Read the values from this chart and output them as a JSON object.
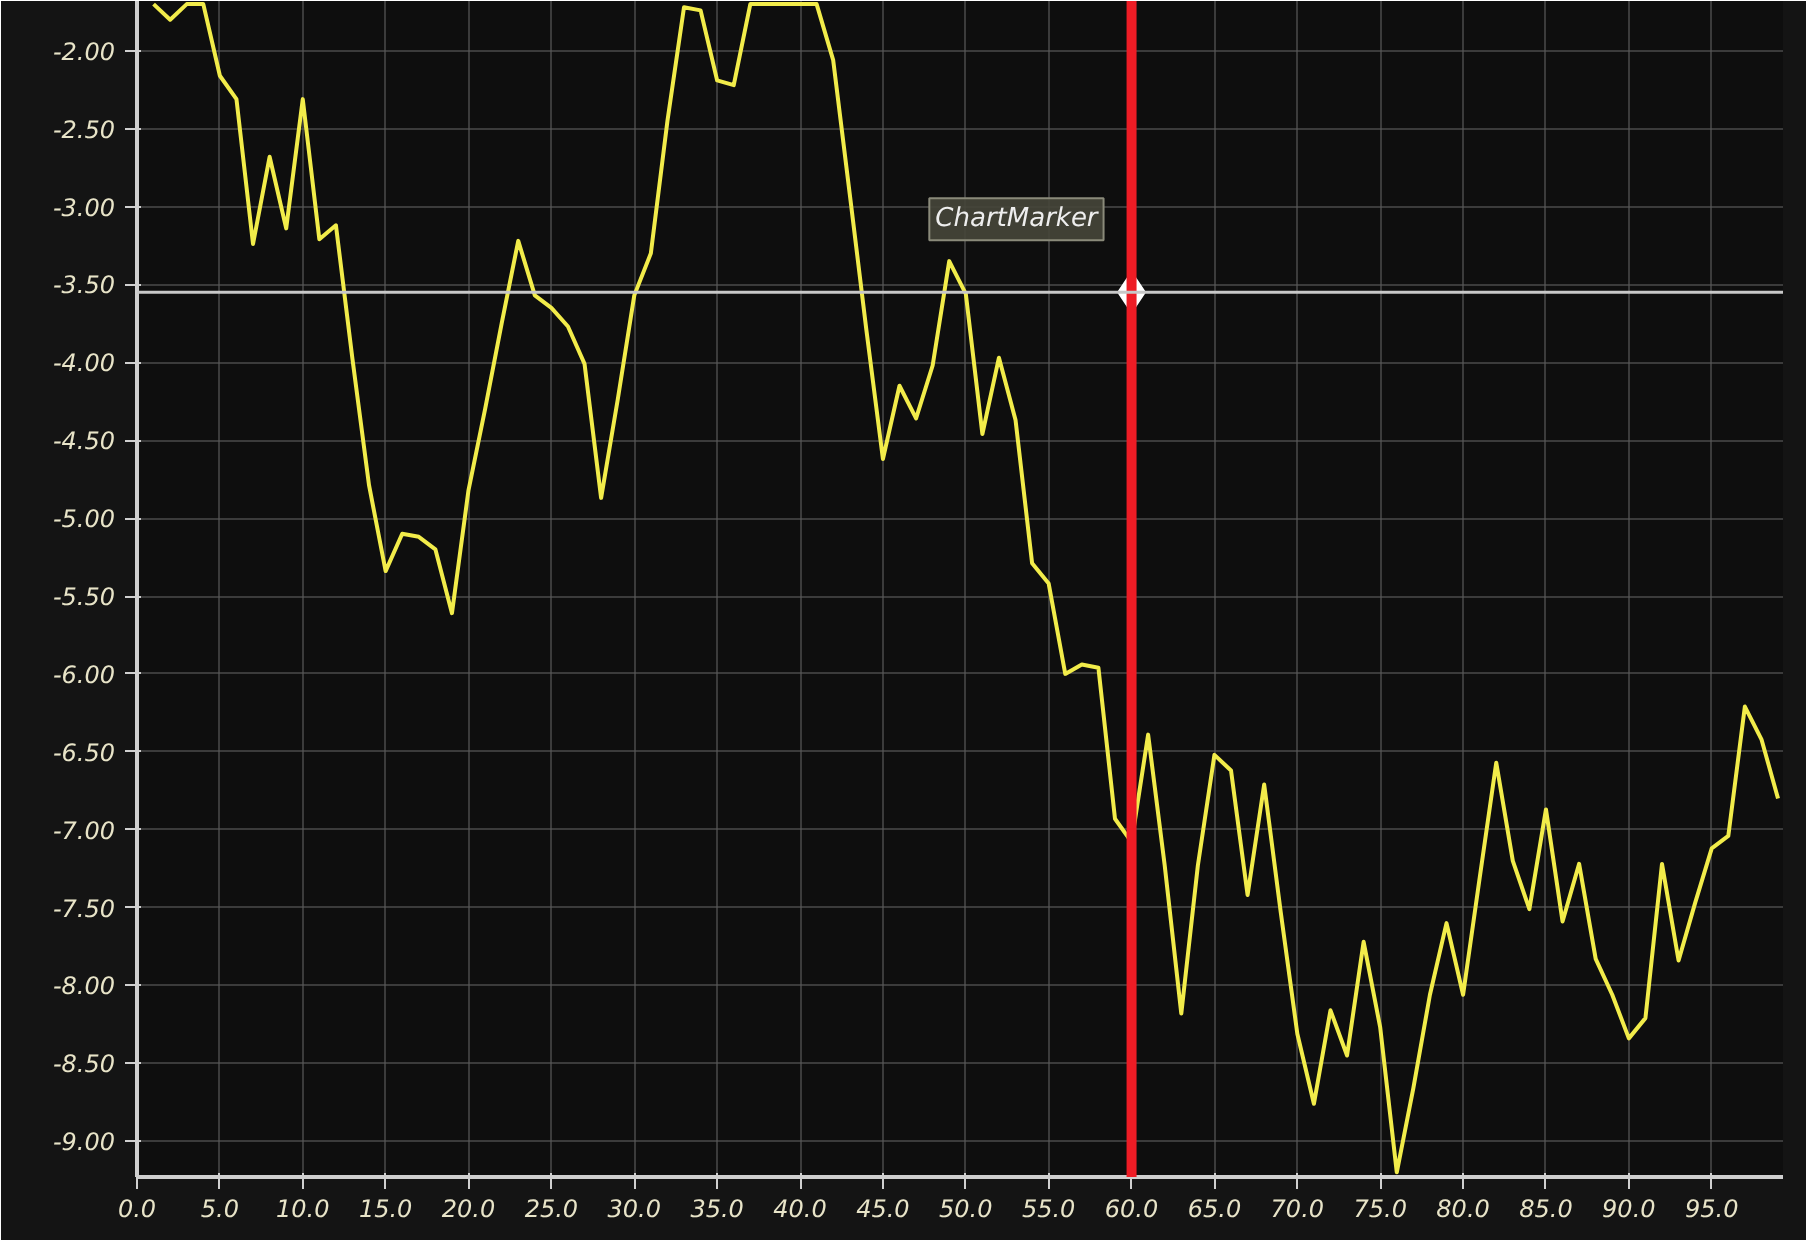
{
  "chart_data": {
    "type": "line",
    "x": [
      1,
      2,
      3,
      4,
      5,
      6,
      7,
      8,
      9,
      10,
      11,
      12,
      13,
      14,
      15,
      16,
      17,
      18,
      19,
      20,
      21,
      22,
      23,
      24,
      25,
      26,
      27,
      28,
      29,
      30,
      31,
      32,
      33,
      34,
      35,
      36,
      37,
      38,
      39,
      40,
      41,
      42,
      43,
      44,
      45,
      46,
      47,
      48,
      49,
      50,
      51,
      52,
      53,
      54,
      55,
      56,
      57,
      58,
      59,
      60,
      61,
      62,
      63,
      64,
      65,
      66,
      67,
      68,
      69,
      70,
      71,
      72,
      73,
      74,
      75,
      76,
      77,
      78,
      79,
      80,
      81,
      82,
      83,
      84,
      85,
      86,
      87,
      88,
      89,
      90,
      91,
      92,
      93,
      94,
      95,
      96,
      97,
      98,
      99
    ],
    "series": [
      {
        "color": "#f2ec4a",
        "values": [
          -1.7,
          -1.8,
          -1.7,
          -1.7,
          -2.16,
          -2.31,
          -3.24,
          -2.68,
          -3.14,
          -2.31,
          -3.21,
          -3.12,
          -3.98,
          -4.79,
          -5.34,
          -5.1,
          -5.12,
          -5.2,
          -5.61,
          -4.82,
          -4.3,
          -3.75,
          -3.22,
          -3.57,
          -3.65,
          -3.77,
          -4.01,
          -4.87,
          -4.24,
          -3.57,
          -3.3,
          -2.45,
          -1.72,
          -1.74,
          -2.19,
          -2.22,
          -1.7,
          -1.7,
          -1.7,
          -1.7,
          -1.7,
          -2.06,
          -2.92,
          -3.79,
          -4.62,
          -4.15,
          -4.36,
          -4.02,
          -3.35,
          -3.56,
          -4.46,
          -3.97,
          -4.37,
          -5.29,
          -5.42,
          -6.0,
          -5.94,
          -5.96,
          -6.93,
          -7.08,
          -6.39,
          -7.23,
          -8.18,
          -7.23,
          -6.52,
          -6.62,
          -7.42,
          -6.71,
          -7.53,
          -8.31,
          -8.76,
          -8.16,
          -8.45,
          -7.72,
          -8.27,
          -9.2,
          -8.66,
          -8.06,
          -7.6,
          -8.06,
          -7.31,
          -6.57,
          -7.2,
          -7.51,
          -6.87,
          -7.59,
          -7.22,
          -7.83,
          -8.06,
          -8.34,
          -8.21,
          -7.22,
          -7.84,
          -7.47,
          -7.12,
          -7.04,
          -6.21,
          -6.42,
          -6.8
        ]
      }
    ],
    "xlim": [
      0,
      99.3
    ],
    "ylim": [
      -9.23,
      -1.68
    ],
    "xticks": [
      {
        "value": 0,
        "label": "0.0"
      },
      {
        "value": 5,
        "label": "5.0"
      },
      {
        "value": 10,
        "label": "10.0"
      },
      {
        "value": 15,
        "label": "15.0"
      },
      {
        "value": 20,
        "label": "20.0"
      },
      {
        "value": 25,
        "label": "25.0"
      },
      {
        "value": 30,
        "label": "30.0"
      },
      {
        "value": 35,
        "label": "35.0"
      },
      {
        "value": 40,
        "label": "40.0"
      },
      {
        "value": 45,
        "label": "45.0"
      },
      {
        "value": 50,
        "label": "50.0"
      },
      {
        "value": 55,
        "label": "55.0"
      },
      {
        "value": 60,
        "label": "60.0"
      },
      {
        "value": 65,
        "label": "65.0"
      },
      {
        "value": 70,
        "label": "70.0"
      },
      {
        "value": 75,
        "label": "75.0"
      },
      {
        "value": 80,
        "label": "80.0"
      },
      {
        "value": 85,
        "label": "85.0"
      },
      {
        "value": 90,
        "label": "90.0"
      },
      {
        "value": 95,
        "label": "95.0"
      }
    ],
    "yticks": [
      {
        "value": -2,
        "label": "-2.00"
      },
      {
        "value": -2.5,
        "label": "-2.50"
      },
      {
        "value": -3,
        "label": "-3.00"
      },
      {
        "value": -3.5,
        "label": "-3.50"
      },
      {
        "value": -4,
        "label": "-4.00"
      },
      {
        "value": -4.5,
        "label": "-4.50"
      },
      {
        "value": -5,
        "label": "-5.00"
      },
      {
        "value": -5.5,
        "label": "-5.50"
      },
      {
        "value": -6,
        "label": "-6.00"
      },
      {
        "value": -6.5,
        "label": "-6.50"
      },
      {
        "value": -7,
        "label": "-7.00"
      },
      {
        "value": -7.5,
        "label": "-7.50"
      },
      {
        "value": -8,
        "label": "-8.00"
      },
      {
        "value": -8.5,
        "label": "-8.50"
      },
      {
        "value": -9,
        "label": "-9.00"
      }
    ],
    "ref_lines": [
      {
        "axis": "x",
        "value": 60,
        "color": "#ee1c25"
      },
      {
        "axis": "y",
        "value": -3.55,
        "color": "#c8c8c8"
      }
    ],
    "annotations": [
      {
        "text": "ChartMarker",
        "x": 60,
        "y": -3.55
      }
    ],
    "grid": true,
    "marker": "none",
    "line_style": "solid"
  }
}
